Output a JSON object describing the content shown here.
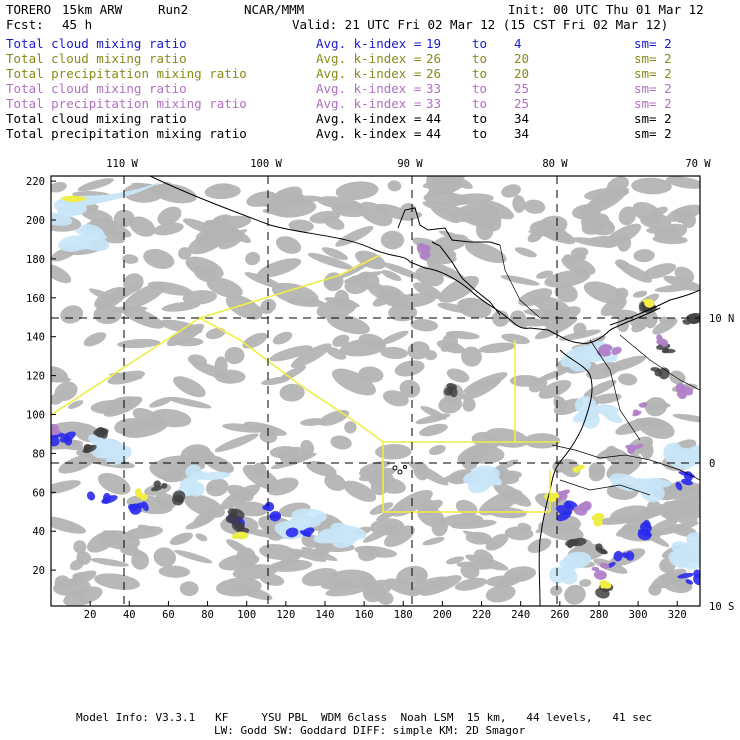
{
  "header": {
    "model": "TORERO",
    "resolution": "15km ARW",
    "run": "Run2",
    "org": "NCAR/MMM",
    "init": "Init: 00 UTC Thu 01 Mar 12",
    "fcst_label": "Fcst:",
    "fcst_value": "45 h",
    "valid": "Valid: 21 UTC Fri 02 Mar 12 (15 CST Fri 02 Mar 12)"
  },
  "legend": [
    {
      "field": "Total cloud mixing ratio",
      "kindex": "Avg. k-index =",
      "from": "19",
      "to_word": "to",
      "to": "4",
      "sm": "sm= 2",
      "color": "#1a1acc"
    },
    {
      "field": "Total cloud mixing ratio",
      "kindex": "Avg. k-index =",
      "from": "26",
      "to_word": "to",
      "to": "20",
      "sm": "sm= 2",
      "color": "#8a8a1a"
    },
    {
      "field": "Total precipitation mixing ratio",
      "kindex": "Avg. k-index =",
      "from": "26",
      "to_word": "to",
      "to": "20",
      "sm": "sm= 2",
      "color": "#8a8a1a"
    },
    {
      "field": "Total cloud mixing ratio",
      "kindex": "Avg. k-index =",
      "from": "33",
      "to_word": "to",
      "to": "25",
      "sm": "sm= 2",
      "color": "#b070c0"
    },
    {
      "field": "Total precipitation mixing ratio",
      "kindex": "Avg. k-index =",
      "from": "33",
      "to_word": "to",
      "to": "25",
      "sm": "sm= 2",
      "color": "#b070c0"
    },
    {
      "field": "Total cloud mixing ratio",
      "kindex": "Avg. k-index =",
      "from": "44",
      "to_word": "to",
      "to": "34",
      "sm": "sm= 2",
      "color": "#000000"
    },
    {
      "field": "Total precipitation mixing ratio",
      "kindex": "Avg. k-index =",
      "from": "44",
      "to_word": "to",
      "to": "34",
      "sm": "sm= 2",
      "color": "#000000"
    }
  ],
  "map": {
    "lon_labels": [
      "110 W",
      "100 W",
      "90 W",
      "80 W",
      "70 W"
    ],
    "lat_labels": [
      "10 N",
      "0",
      "10 S"
    ],
    "y_ticks": [
      "220",
      "200",
      "180",
      "160",
      "140",
      "120",
      "100",
      "80",
      "60",
      "40",
      "20"
    ],
    "x_ticks": [
      "20",
      "40",
      "60",
      "80",
      "100",
      "120",
      "140",
      "160",
      "180",
      "200",
      "220",
      "240",
      "260",
      "280",
      "300",
      "320"
    ],
    "colors": {
      "cloud_grey": "#b4b4b4",
      "cloud_blue": "#2a2aee",
      "light_blue": "#c8e6f7",
      "yellow": "#eeee44",
      "violet": "#b080c8",
      "boundary": "#eeee44",
      "coast": "#000000"
    }
  },
  "footer": {
    "line1": "Model Info: V3.3.1   KF     YSU PBL  WDM 6class  Noah LSM  15 km,   44 levels,   41 sec",
    "line2": "LW: Godd SW: Goddard DIFF: simple KM: 2D Smagor"
  }
}
